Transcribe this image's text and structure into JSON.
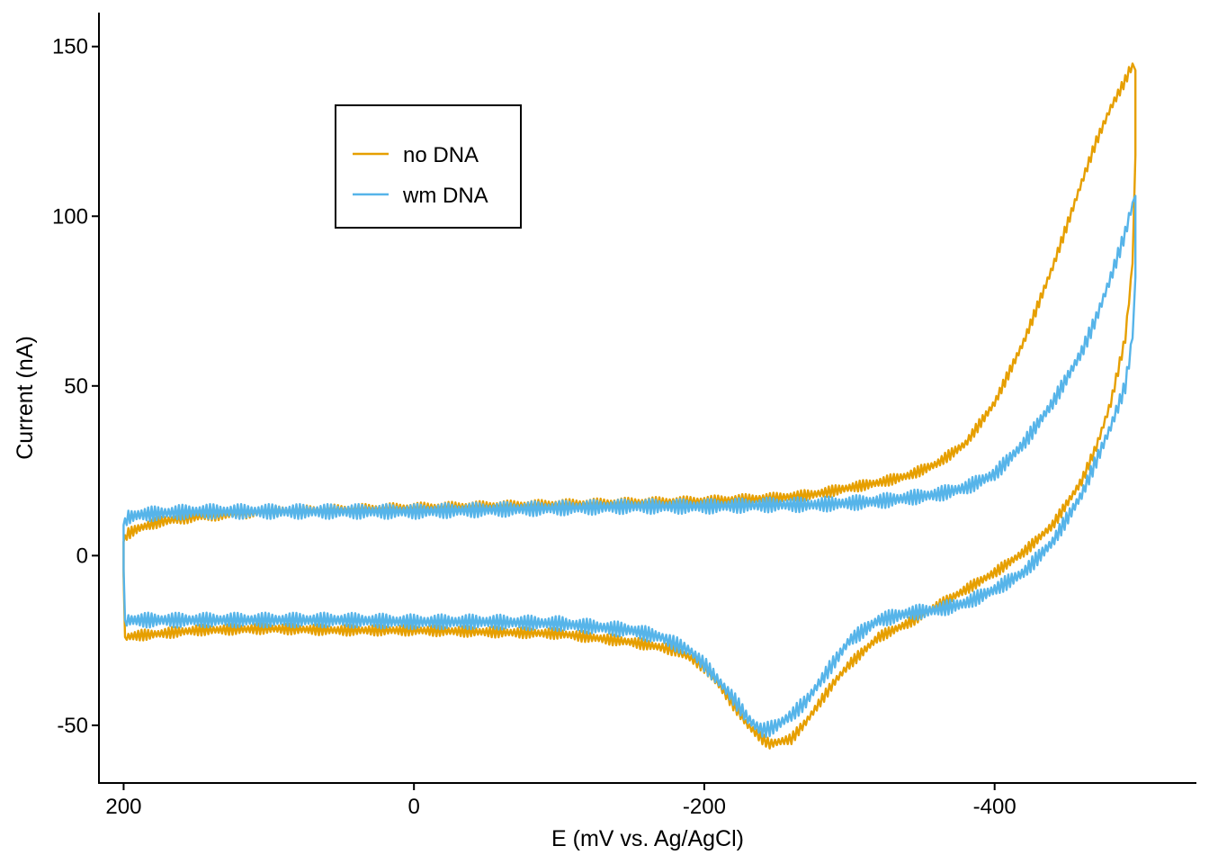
{
  "chart_data": {
    "type": "line",
    "title": "",
    "xlabel": "E (mV vs. Ag/AgCl)",
    "ylabel": "Current (nA)",
    "x_reversed": true,
    "xlim": [
      217,
      -539
    ],
    "ylim": [
      -67,
      160
    ],
    "x_ticks": [
      200,
      0,
      -200,
      -400
    ],
    "x_tick_labels": [
      "200",
      "0",
      "-200",
      "-400"
    ],
    "y_ticks": [
      150,
      100,
      50,
      0,
      -50
    ],
    "y_tick_labels": [
      "150",
      "100",
      "50",
      "0",
      "-50"
    ],
    "grid": false,
    "legend_position": "top-left",
    "series": [
      {
        "name": "no DNA",
        "color": "#E69F00",
        "noise_amplitude": 1.6,
        "x": [
          200,
          200,
          199,
          190,
          175,
          150,
          100,
          50,
          0,
          -50,
          -100,
          -150,
          -200,
          -250,
          -275,
          -300,
          -320,
          -340,
          -360,
          -380,
          -400,
          -420,
          -440,
          -460,
          -470,
          -480,
          -490,
          -495,
          -497,
          -497,
          -495,
          -490,
          -480,
          -470,
          -460,
          -440,
          -420,
          -400,
          -380,
          -360,
          -340,
          -320,
          -300,
          -290,
          -280,
          -270,
          -260,
          -250,
          -245,
          -240,
          -235,
          -230,
          -225,
          -220,
          -210,
          -200,
          -190,
          -180,
          -170,
          -150,
          -100,
          -50,
          0,
          50,
          100,
          150,
          175,
          190,
          199,
          200
        ],
        "y": [
          -6,
          4,
          6,
          8,
          10,
          11.5,
          13,
          13.5,
          14,
          14.5,
          15,
          15.5,
          16,
          17,
          18,
          20,
          21.5,
          23.5,
          27,
          33,
          45,
          63,
          85,
          110,
          122,
          132,
          140,
          145,
          143,
          118,
          86,
          64,
          45,
          32,
          22,
          9,
          1,
          -5,
          -10,
          -15,
          -20,
          -24,
          -32,
          -37,
          -43,
          -49,
          -54,
          -55,
          -55.5,
          -54,
          -52,
          -50,
          -47,
          -44,
          -38,
          -33,
          -30,
          -28,
          -27,
          -25.5,
          -23,
          -22.5,
          -22,
          -22,
          -21.5,
          -22,
          -23,
          -23.5,
          -24,
          -6
        ]
      },
      {
        "name": "wm DNA",
        "color": "#56B4E9",
        "noise_amplitude": 2.2,
        "x": [
          200,
          200,
          199,
          190,
          175,
          150,
          100,
          50,
          0,
          -50,
          -100,
          -150,
          -200,
          -250,
          -275,
          -300,
          -320,
          -340,
          -360,
          -380,
          -400,
          -420,
          -440,
          -460,
          -470,
          -480,
          -490,
          -495,
          -497,
          -497,
          -495,
          -490,
          -480,
          -470,
          -460,
          -440,
          -420,
          -400,
          -380,
          -360,
          -340,
          -320,
          -300,
          -290,
          -280,
          -270,
          -260,
          -250,
          -245,
          -240,
          -235,
          -230,
          -225,
          -220,
          -210,
          -200,
          -190,
          -180,
          -170,
          -150,
          -100,
          -50,
          0,
          50,
          100,
          150,
          175,
          190,
          199,
          200
        ],
        "y": [
          -4,
          9,
          11,
          12,
          12.5,
          13,
          13,
          13,
          13,
          13.5,
          14,
          14.5,
          14.5,
          15,
          15,
          15.5,
          16,
          17,
          18,
          20,
          24,
          33,
          45,
          60,
          70,
          82,
          95,
          104,
          106,
          82,
          64,
          50,
          38,
          28,
          18,
          4,
          -5,
          -10,
          -14,
          -16,
          -17,
          -19,
          -25,
          -31,
          -37,
          -43,
          -47,
          -50,
          -51,
          -51.5,
          -50,
          -48,
          -45,
          -42,
          -37,
          -32,
          -28,
          -26,
          -24,
          -22,
          -20,
          -19.5,
          -19.5,
          -19,
          -19,
          -19,
          -19,
          -19,
          -19,
          -4
        ]
      }
    ]
  }
}
